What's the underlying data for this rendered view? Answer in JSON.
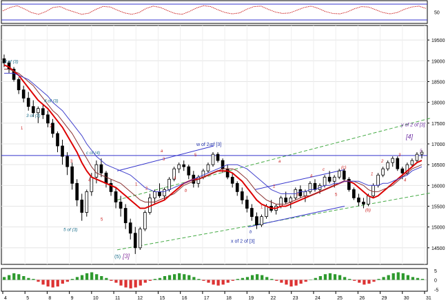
{
  "chart_data": [
    {
      "type": "line",
      "panel": "top-oscillator",
      "ytick_label": "50",
      "series": [
        {
          "color": "#cc2222",
          "style": "dotted",
          "values": [
            55,
            70,
            78,
            64,
            48,
            40,
            52,
            70,
            74,
            60,
            50,
            40,
            45,
            62,
            75,
            72,
            58,
            46,
            40,
            48,
            66,
            76,
            70,
            56,
            44,
            40,
            52,
            68,
            78,
            74,
            60,
            48,
            42,
            46,
            62,
            74,
            76,
            62,
            50,
            44,
            46,
            58,
            70,
            76,
            66,
            52,
            44,
            42,
            50,
            64,
            74,
            72,
            60,
            48,
            42,
            48,
            62,
            72,
            76,
            66
          ]
        }
      ],
      "reference_lines": [
        85,
        15
      ],
      "ylim": [
        0,
        100
      ]
    },
    {
      "type": "line",
      "panel": "main-price",
      "x_tick_labels": [
        "4",
        "5",
        "8",
        "9",
        "10",
        "11",
        "12",
        "15",
        "16",
        "17",
        "18",
        "19",
        "22",
        "23",
        "24",
        "25",
        "26",
        "29",
        "30",
        "31"
      ],
      "y_tick_labels": [
        "19500",
        "19000",
        "18500",
        "18000",
        "17500",
        "17000",
        "16500",
        "16000",
        "15500",
        "15000",
        "14500"
      ],
      "ylim": [
        14100,
        19850
      ],
      "horizontal_line": 16720,
      "candles": [
        [
          19050,
          19150,
          18850,
          18950
        ],
        [
          18950,
          19000,
          18700,
          18800
        ],
        [
          18800,
          18850,
          18500,
          18550
        ],
        [
          18550,
          18600,
          18200,
          18300
        ],
        [
          18300,
          18400,
          18000,
          18100
        ],
        [
          18100,
          18250,
          17800,
          17900
        ],
        [
          17900,
          18050,
          17650,
          17750
        ],
        [
          17750,
          17900,
          17500,
          17850
        ],
        [
          17850,
          17950,
          17600,
          17700
        ],
        [
          17700,
          17800,
          17400,
          17500
        ],
        [
          17500,
          17600,
          17150,
          17250
        ],
        [
          17250,
          17300,
          16800,
          16950
        ],
        [
          16950,
          17100,
          16500,
          16700
        ],
        [
          16700,
          16800,
          16250,
          16450
        ],
        [
          16450,
          16550,
          15900,
          16050
        ],
        [
          16050,
          16150,
          15500,
          15650
        ],
        [
          15650,
          15800,
          15150,
          15350
        ],
        [
          15350,
          15900,
          15250,
          15850
        ],
        [
          15850,
          16300,
          15750,
          16200
        ],
        [
          16200,
          16600,
          16050,
          16500
        ],
        [
          16500,
          16650,
          16200,
          16300
        ],
        [
          16300,
          16350,
          15950,
          16050
        ],
        [
          16050,
          16150,
          15750,
          15850
        ],
        [
          15850,
          15950,
          15450,
          15600
        ],
        [
          15600,
          15750,
          15250,
          15450
        ],
        [
          15450,
          15550,
          14950,
          15100
        ],
        [
          15100,
          15200,
          14700,
          14850
        ],
        [
          14850,
          15000,
          14350,
          14500
        ],
        [
          14500,
          15000,
          14450,
          14950
        ],
        [
          14950,
          15400,
          14900,
          15350
        ],
        [
          15350,
          15800,
          15300,
          15700
        ],
        [
          15700,
          15900,
          15550,
          15850
        ],
        [
          15850,
          16050,
          15700,
          15750
        ],
        [
          15750,
          15950,
          15650,
          15900
        ],
        [
          15900,
          16200,
          15850,
          16150
        ],
        [
          16150,
          16450,
          16100,
          16400
        ],
        [
          16400,
          16550,
          16300,
          16500
        ],
        [
          16500,
          16600,
          16350,
          16450
        ],
        [
          16450,
          16500,
          16150,
          16250
        ],
        [
          16250,
          16350,
          15950,
          16050
        ],
        [
          16050,
          16250,
          15950,
          16200
        ],
        [
          16200,
          16400,
          16150,
          16350
        ],
        [
          16350,
          16550,
          16300,
          16500
        ],
        [
          16500,
          16800,
          16450,
          16750
        ],
        [
          16750,
          16800,
          16550,
          16600
        ],
        [
          16600,
          16650,
          16300,
          16400
        ],
        [
          16400,
          16500,
          16150,
          16200
        ],
        [
          16200,
          16300,
          15950,
          16050
        ],
        [
          16050,
          16100,
          15750,
          15850
        ],
        [
          15850,
          15950,
          15550,
          15650
        ],
        [
          15650,
          15750,
          15350,
          15450
        ],
        [
          15450,
          15550,
          15150,
          15250
        ],
        [
          15250,
          15350,
          14950,
          15050
        ],
        [
          15050,
          15300,
          15000,
          15250
        ],
        [
          15250,
          15550,
          15200,
          15500
        ],
        [
          15500,
          15650,
          15350,
          15400
        ],
        [
          15400,
          15550,
          15300,
          15500
        ],
        [
          15500,
          15750,
          15450,
          15700
        ],
        [
          15700,
          15850,
          15550,
          15600
        ],
        [
          15600,
          15750,
          15450,
          15700
        ],
        [
          15700,
          15950,
          15650,
          15900
        ],
        [
          15900,
          16000,
          15700,
          15750
        ],
        [
          15750,
          15900,
          15600,
          15850
        ],
        [
          15850,
          16100,
          15800,
          16050
        ],
        [
          16050,
          16150,
          15850,
          15900
        ],
        [
          15900,
          16050,
          15800,
          16000
        ],
        [
          16000,
          16250,
          15950,
          16200
        ],
        [
          16200,
          16350,
          16050,
          16100
        ],
        [
          16100,
          16250,
          15950,
          16200
        ],
        [
          16200,
          16400,
          16150,
          16350
        ],
        [
          16350,
          16400,
          16100,
          16150
        ],
        [
          16150,
          16200,
          15850,
          15900
        ],
        [
          15900,
          15950,
          15650,
          15700
        ],
        [
          15700,
          15800,
          15500,
          15600
        ],
        [
          15600,
          15700,
          15450,
          15550
        ],
        [
          15550,
          15800,
          15500,
          15750
        ],
        [
          15750,
          16050,
          15700,
          16000
        ],
        [
          16000,
          16300,
          15950,
          16250
        ],
        [
          16250,
          16450,
          16200,
          16400
        ],
        [
          16400,
          16600,
          16350,
          16550
        ],
        [
          16550,
          16700,
          16450,
          16650
        ],
        [
          16650,
          16700,
          16350,
          16400
        ],
        [
          16400,
          16450,
          16150,
          16300
        ],
        [
          16300,
          16550,
          16250,
          16500
        ],
        [
          16500,
          16650,
          16450,
          16600
        ],
        [
          16600,
          16800,
          16550,
          16750
        ],
        [
          16750,
          16850,
          16650,
          16800
        ]
      ],
      "series": [
        {
          "color": "#dd0000",
          "width": 2,
          "values": [
            18900,
            18850,
            18750,
            18650,
            18500,
            18350,
            18200,
            18050,
            17950,
            17850,
            17700,
            17550,
            17400,
            17200,
            17000,
            16800,
            16550,
            16350,
            16200,
            16150,
            16100,
            16050,
            16000,
            15950,
            15850,
            15750,
            15650,
            15550,
            15450,
            15450,
            15500,
            15550,
            15600,
            15650,
            15750,
            15850,
            15950,
            16050,
            16100,
            16150,
            16150,
            16200,
            16250,
            16300,
            16350,
            16350,
            16350,
            16300,
            16200,
            16100,
            15950,
            15800,
            15650,
            15550,
            15500,
            15450,
            15450,
            15500,
            15500,
            15550,
            15600,
            15650,
            15700,
            15750,
            15800,
            15850,
            15900,
            15950,
            16000,
            16050,
            16100,
            16100,
            16050,
            15950,
            15850,
            15750,
            15700,
            15750,
            15850,
            15950,
            16050,
            16150,
            16250,
            16350,
            16450,
            16550,
            16600
          ]
        },
        {
          "color": "#8a3030",
          "width": 1,
          "values": [
            18800,
            18800,
            18750,
            18700,
            18600,
            18500,
            18400,
            18250,
            18100,
            17950,
            17800,
            17700,
            17550,
            17400,
            17250,
            17050,
            16850,
            16650,
            16450,
            16300,
            16250,
            16200,
            16150,
            16100,
            16050,
            15950,
            15850,
            15750,
            15650,
            15600,
            15600,
            15600,
            15650,
            15700,
            15750,
            15800,
            15900,
            16000,
            16050,
            16100,
            16150,
            16200,
            16250,
            16300,
            16350,
            16400,
            16400,
            16400,
            16350,
            16250,
            16150,
            16000,
            15850,
            15750,
            15650,
            15600,
            15550,
            15550,
            15550,
            15600,
            15650,
            15700,
            15750,
            15750,
            15800,
            15850,
            15900,
            15950,
            16000,
            16050,
            16100,
            16100,
            16100,
            16050,
            16000,
            15900,
            15850,
            15850,
            15900,
            15950,
            16000,
            16100,
            16200,
            16300,
            16400,
            16450,
            16500
          ]
        },
        {
          "color": "#4040cc",
          "width": 1,
          "values": [
            18700,
            18700,
            18700,
            18650,
            18600,
            18550,
            18450,
            18350,
            18250,
            18150,
            18000,
            17900,
            17800,
            17650,
            17500,
            17350,
            17200,
            17000,
            16850,
            16700,
            16600,
            16500,
            16450,
            16400,
            16350,
            16300,
            16250,
            16150,
            16050,
            15950,
            15900,
            15850,
            15850,
            15850,
            15900,
            15950,
            16000,
            16050,
            16100,
            16150,
            16200,
            16250,
            16300,
            16350,
            16400,
            16450,
            16500,
            16500,
            16500,
            16450,
            16400,
            16300,
            16200,
            16100,
            16000,
            15900,
            15850,
            15800,
            15800,
            15800,
            15800,
            15850,
            15850,
            15900,
            15900,
            15950,
            16000,
            16000,
            16050,
            16050,
            16100,
            16100,
            16100,
            16100,
            16050,
            16000,
            16000,
            16000,
            16050,
            16050,
            16100,
            16150,
            16200,
            16250,
            16350,
            16400,
            16450
          ]
        }
      ],
      "annotations": [
        "3 of (3)",
        "4 of (3)",
        "3 of (3)",
        "c of (4)",
        "5 of (3)",
        "(5)",
        "[3]",
        "w of 2 of [3]",
        "x of 2 of [3]",
        "y of 2 of [3]",
        "[4]",
        "(c)",
        "(b)",
        "a",
        "b",
        "c",
        "a",
        "b",
        "c",
        "1",
        "2",
        "3",
        "4",
        "5",
        "1",
        "2",
        "3",
        "4",
        "5",
        "1",
        "2",
        "3",
        "4",
        "5",
        "1",
        "2",
        "3",
        "4",
        "5"
      ]
    },
    {
      "type": "bar",
      "panel": "bottom-oscillator",
      "y_tick_labels": [
        "5",
        "0",
        "-5"
      ],
      "colors": {
        "positive": "#2e9a2e",
        "negative": "#dd3333"
      },
      "values": [
        1.5,
        2.5,
        3.5,
        3.0,
        2.0,
        1.0,
        0.5,
        -1.0,
        -2.5,
        -3.5,
        -4.0,
        -3.5,
        -2.0,
        -1.0,
        0.5,
        1.5,
        2.5,
        3.5,
        4.0,
        3.0,
        2.0,
        1.0,
        -0.5,
        -1.5,
        -3.0,
        -4.0,
        -4.5,
        -4.0,
        -3.0,
        -1.5,
        -0.5,
        0.5,
        1.0,
        2.0,
        2.5,
        3.0,
        3.5,
        3.0,
        2.5,
        1.5,
        0.5,
        -0.5,
        -1.5,
        -2.5,
        -3.0,
        -2.5,
        -1.5,
        -0.5,
        0.5,
        1.0,
        1.5,
        2.5,
        3.0,
        2.5,
        1.5,
        0.5,
        -0.5,
        -1.5,
        -2.5,
        -3.5,
        -3.0,
        -2.0,
        -1.0,
        0.0,
        1.0,
        2.0,
        3.0,
        3.5,
        3.0,
        2.5,
        1.5,
        0.5,
        -0.5,
        -1.5,
        -2.5,
        -2.0,
        -1.0,
        0.5,
        1.5,
        2.5,
        3.5,
        4.0,
        3.5,
        2.5,
        1.5,
        1.0,
        0.5
      ]
    }
  ]
}
